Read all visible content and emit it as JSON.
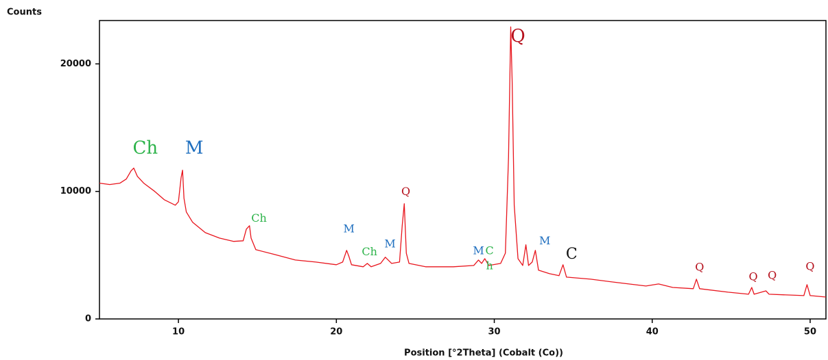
{
  "chart_data": {
    "type": "line",
    "y_label": "Counts",
    "x_label": "Position [°2Theta] (Cobalt (Co))",
    "color": "#e8141c",
    "xlim": [
      5,
      51
    ],
    "ylim": [
      0,
      23400
    ],
    "xticks": [
      10,
      20,
      30,
      40,
      50
    ],
    "yticks": [
      0,
      10000,
      20000
    ],
    "grid": false,
    "x": [
      5,
      5.65,
      6.3,
      6.7,
      7.0,
      7.17,
      7.4,
      7.8,
      8.5,
      9.1,
      9.8,
      10.0,
      10.17,
      10.26,
      10.35,
      10.5,
      10.9,
      11.7,
      12.6,
      13.5,
      14.1,
      14.3,
      14.5,
      14.6,
      14.9,
      16.1,
      17.4,
      18.7,
      20.0,
      20.4,
      20.65,
      20.8,
      20.96,
      21.7,
      21.96,
      22.2,
      22.8,
      23.1,
      23.5,
      24.0,
      24.17,
      24.3,
      24.43,
      24.6,
      25.65,
      27.4,
      28.7,
      29.0,
      29.2,
      29.4,
      29.65,
      30.4,
      30.7,
      30.9,
      31.04,
      31.13,
      31.26,
      31.5,
      31.8,
      32.0,
      32.17,
      32.4,
      32.6,
      32.8,
      33.5,
      34.1,
      34.35,
      34.57,
      36.1,
      37.8,
      39.6,
      40.4,
      41.3,
      42.6,
      42.8,
      43.0,
      44.8,
      46.1,
      46.3,
      46.45,
      47.2,
      47.4,
      49.6,
      49.8,
      50.0,
      51.0
    ],
    "values": [
      10650,
      10540,
      10650,
      10970,
      11610,
      11830,
      11180,
      10650,
      10000,
      9350,
      8920,
      9190,
      11080,
      11670,
      9460,
      8390,
      7580,
      6770,
      6340,
      6080,
      6130,
      7040,
      7310,
      6340,
      5430,
      5050,
      4620,
      4460,
      4250,
      4460,
      5380,
      4890,
      4250,
      4090,
      4350,
      4090,
      4350,
      4840,
      4350,
      4460,
      7310,
      9030,
      5160,
      4350,
      4090,
      4090,
      4190,
      4620,
      4350,
      4730,
      4190,
      4350,
      5160,
      12690,
      22900,
      18600,
      8920,
      4730,
      4190,
      5810,
      4190,
      4460,
      5380,
      3820,
      3550,
      3390,
      4250,
      3280,
      3120,
      2850,
      2580,
      2740,
      2470,
      2370,
      3120,
      2370,
      2100,
      1940,
      2470,
      1940,
      2200,
      1940,
      1830,
      2690,
      1830,
      1720
    ],
    "annotations": [
      {
        "text": "Ch",
        "x": 7.9,
        "y": 13330,
        "color": "#2db34a",
        "size": "large"
      },
      {
        "text": "M",
        "x": 11.0,
        "y": 13330,
        "color": "#1f6fbf",
        "size": "large"
      },
      {
        "text": "Ch",
        "x": 15.1,
        "y": 7850,
        "color": "#2db34a",
        "size": "small"
      },
      {
        "text": "M",
        "x": 20.8,
        "y": 7040,
        "color": "#1f6fbf",
        "size": "small"
      },
      {
        "text": "Ch",
        "x": 22.1,
        "y": 5220,
        "color": "#2db34a",
        "size": "small"
      },
      {
        "text": "M",
        "x": 23.4,
        "y": 5860,
        "color": "#1f6fbf",
        "size": "small"
      },
      {
        "text": "Q",
        "x": 24.4,
        "y": 9950,
        "color": "#b5101c",
        "size": "small"
      },
      {
        "text": "M",
        "x": 29.0,
        "y": 5320,
        "color": "#1f6fbf",
        "size": "small"
      },
      {
        "text": "C",
        "x": 29.7,
        "y": 5320,
        "color": "#2db34a",
        "size": "small"
      },
      {
        "text": "h",
        "x": 29.7,
        "y": 4140,
        "color": "#2db34a",
        "size": "small"
      },
      {
        "text": "Q",
        "x": 31.5,
        "y": 22100,
        "color": "#b5101c",
        "size": "large"
      },
      {
        "text": "M",
        "x": 33.2,
        "y": 6080,
        "color": "#1f6fbf",
        "size": "small"
      },
      {
        "text": "C",
        "x": 34.9,
        "y": 5050,
        "color": "#111111",
        "size": "medium"
      },
      {
        "text": "Q",
        "x": 43.0,
        "y": 4030,
        "color": "#b5101c",
        "size": "small"
      },
      {
        "text": "Q",
        "x": 46.4,
        "y": 3280,
        "color": "#b5101c",
        "size": "small"
      },
      {
        "text": "Q",
        "x": 47.6,
        "y": 3390,
        "color": "#b5101c",
        "size": "small"
      },
      {
        "text": "Q",
        "x": 50.0,
        "y": 4090,
        "color": "#b5101c",
        "size": "small"
      }
    ]
  }
}
